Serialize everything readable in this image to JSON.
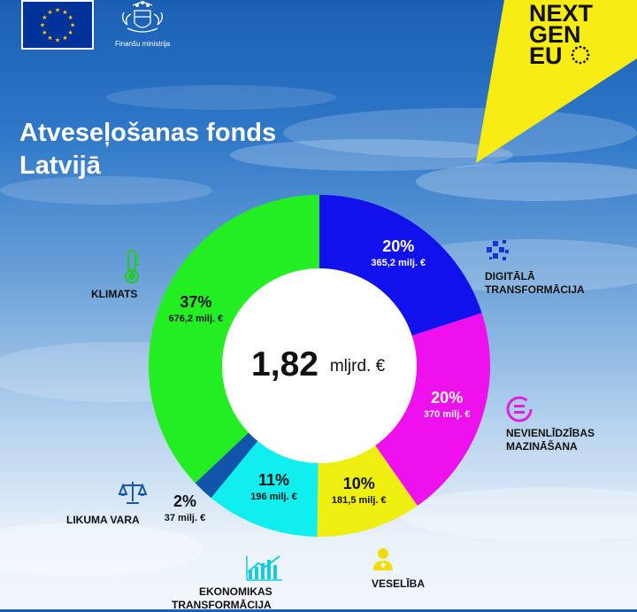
{
  "header": {
    "ministry": "Finanšu ministrija",
    "brand_line1": "NEXT",
    "brand_line2": "GEN",
    "brand_line3": "EU"
  },
  "title": {
    "line1": "Atveseļošanas fonds",
    "line2": "Latvijā"
  },
  "center": {
    "value": "1,82",
    "unit": "mljrd. €"
  },
  "colors": {
    "accent_yellow": "#f7ec13",
    "klimats": "#22ee22",
    "digitala": "#1111ee",
    "nevienlidzibas": "#ee11ee",
    "veseliba": "#eeee11",
    "ekonomikas": "#11eeee",
    "likuma": "#1155aa"
  },
  "chart_data": {
    "type": "pie",
    "donut": true,
    "total": 1.82,
    "categories": [
      "DIGITĀLĀ TRANSFORMĀCIJA",
      "NEVIENLĪDZĪBAS MAZINĀŠANA",
      "VESELĪBA",
      "EKONOMIKAS TRANSFORMĀCIJA",
      "LIKUMA VARA",
      "KLIMATS"
    ],
    "values": [
      365.2,
      370,
      181.5,
      196,
      37,
      676.2
    ],
    "percent": [
      20,
      20,
      10,
      11,
      2,
      37
    ],
    "slices": [
      {
        "name": "digitala",
        "pct_label": "20%",
        "amount_label": "365,2 milj. €",
        "value": 365.2,
        "color": "#1111ee",
        "text_color": "#ffffff",
        "icon": "digital-icon"
      },
      {
        "name": "nevienlidzibas",
        "pct_label": "20%",
        "amount_label": "370 milj. €",
        "value": 370,
        "color": "#ee11ee",
        "text_color": "#ffffff",
        "icon": "equality-icon"
      },
      {
        "name": "veseliba",
        "pct_label": "10%",
        "amount_label": "181,5 milj. €",
        "value": 181.5,
        "color": "#eeee11",
        "text_color": "#111111",
        "icon": "health-icon"
      },
      {
        "name": "ekonomikas",
        "pct_label": "11%",
        "amount_label": "196 milj. €",
        "value": 196,
        "color": "#11eeee",
        "text_color": "#111111",
        "icon": "growth-chart-icon"
      },
      {
        "name": "likuma",
        "pct_label": "2%",
        "amount_label": "37 milj. €",
        "value": 37,
        "color": "#1155aa",
        "text_color": "#111111",
        "icon": "scales-icon"
      },
      {
        "name": "klimats",
        "pct_label": "37%",
        "amount_label": "676,2 milj. €",
        "value": 676.2,
        "color": "#22ee22",
        "text_color": "#111111",
        "icon": "thermometer-icon"
      }
    ]
  },
  "labels": {
    "klimats": "KLIMATS",
    "digitala_1": "DIGITĀLĀ",
    "digitala_2": "TRANSFORMĀCIJA",
    "nevienlidzibas_1": "NEVIENLĪDZĪBAS",
    "nevienlidzibas_2": "MAZINĀŠANA",
    "veseliba": "VESELĪBA",
    "ekonomikas_1": "EKONOMIKAS",
    "ekonomikas_2": "TRANSFORMĀCIJA",
    "likuma": "LIKUMA VARA"
  }
}
